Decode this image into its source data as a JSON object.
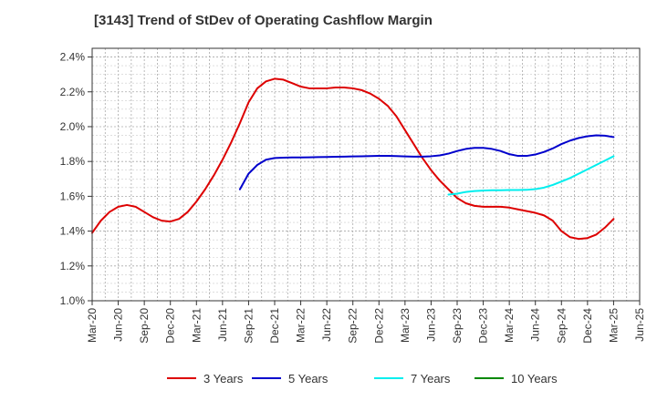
{
  "chart_data": {
    "type": "line",
    "title": "[3143]  Trend of StDev of Operating Cashflow Margin",
    "xlabel": "",
    "ylabel": "",
    "x_ticks": [
      "Mar-20",
      "Jun-20",
      "Sep-20",
      "Dec-20",
      "Mar-21",
      "Jun-21",
      "Sep-21",
      "Dec-21",
      "Mar-22",
      "Jun-22",
      "Sep-22",
      "Dec-22",
      "Mar-23",
      "Jun-23",
      "Sep-23",
      "Dec-23",
      "Mar-24",
      "Jun-24",
      "Sep-24",
      "Dec-24",
      "Mar-25",
      "Jun-25"
    ],
    "y_ticks": [
      "1.0%",
      "1.2%",
      "1.4%",
      "1.6%",
      "1.8%",
      "2.0%",
      "2.2%",
      "2.4%"
    ],
    "ylim": [
      1.0,
      2.45
    ],
    "y_unit": "%",
    "grid": true,
    "legend_position": "bottom",
    "series": [
      {
        "name": "3 Years",
        "color": "#dd0000",
        "points": [
          [
            "Mar-20",
            1.39
          ],
          [
            "Apr-20",
            1.46
          ],
          [
            "May-20",
            1.51
          ],
          [
            "Jun-20",
            1.54
          ],
          [
            "Jul-20",
            1.55
          ],
          [
            "Aug-20",
            1.54
          ],
          [
            "Sep-20",
            1.51
          ],
          [
            "Oct-20",
            1.48
          ],
          [
            "Nov-20",
            1.46
          ],
          [
            "Dec-20",
            1.455
          ],
          [
            "Jan-21",
            1.47
          ],
          [
            "Feb-21",
            1.51
          ],
          [
            "Mar-21",
            1.57
          ],
          [
            "Apr-21",
            1.64
          ],
          [
            "May-21",
            1.72
          ],
          [
            "Jun-21",
            1.81
          ],
          [
            "Jul-21",
            1.91
          ],
          [
            "Aug-21",
            2.02
          ],
          [
            "Sep-21",
            2.14
          ],
          [
            "Oct-21",
            2.22
          ],
          [
            "Nov-21",
            2.26
          ],
          [
            "Dec-21",
            2.275
          ],
          [
            "Jan-22",
            2.27
          ],
          [
            "Feb-22",
            2.25
          ],
          [
            "Mar-22",
            2.23
          ],
          [
            "Apr-22",
            2.22
          ],
          [
            "May-22",
            2.22
          ],
          [
            "Jun-22",
            2.22
          ],
          [
            "Jul-22",
            2.225
          ],
          [
            "Aug-22",
            2.225
          ],
          [
            "Sep-22",
            2.22
          ],
          [
            "Oct-22",
            2.21
          ],
          [
            "Nov-22",
            2.19
          ],
          [
            "Dec-22",
            2.16
          ],
          [
            "Jan-23",
            2.12
          ],
          [
            "Feb-23",
            2.06
          ],
          [
            "Mar-23",
            1.98
          ],
          [
            "Apr-23",
            1.9
          ],
          [
            "May-23",
            1.82
          ],
          [
            "Jun-23",
            1.75
          ],
          [
            "Jul-23",
            1.69
          ],
          [
            "Aug-23",
            1.64
          ],
          [
            "Sep-23",
            1.59
          ],
          [
            "Oct-23",
            1.56
          ],
          [
            "Nov-23",
            1.545
          ],
          [
            "Dec-23",
            1.54
          ],
          [
            "Jan-24",
            1.54
          ],
          [
            "Feb-24",
            1.54
          ],
          [
            "Mar-24",
            1.535
          ],
          [
            "Apr-24",
            1.525
          ],
          [
            "May-24",
            1.515
          ],
          [
            "Jun-24",
            1.505
          ],
          [
            "Jul-24",
            1.49
          ],
          [
            "Aug-24",
            1.46
          ],
          [
            "Sep-24",
            1.4
          ],
          [
            "Oct-24",
            1.365
          ],
          [
            "Nov-24",
            1.355
          ],
          [
            "Dec-24",
            1.36
          ],
          [
            "Jan-25",
            1.38
          ],
          [
            "Feb-25",
            1.42
          ],
          [
            "Mar-25",
            1.47
          ]
        ]
      },
      {
        "name": "5 Years",
        "color": "#0000cc",
        "points": [
          [
            "Aug-21",
            1.64
          ],
          [
            "Sep-21",
            1.73
          ],
          [
            "Oct-21",
            1.78
          ],
          [
            "Nov-21",
            1.81
          ],
          [
            "Dec-21",
            1.82
          ],
          [
            "Jan-22",
            1.822
          ],
          [
            "Feb-22",
            1.823
          ],
          [
            "Mar-22",
            1.823
          ],
          [
            "Apr-22",
            1.824
          ],
          [
            "May-22",
            1.825
          ],
          [
            "Jun-22",
            1.826
          ],
          [
            "Jul-22",
            1.827
          ],
          [
            "Aug-22",
            1.828
          ],
          [
            "Sep-22",
            1.829
          ],
          [
            "Oct-22",
            1.83
          ],
          [
            "Nov-22",
            1.831
          ],
          [
            "Dec-22",
            1.832
          ],
          [
            "Jan-23",
            1.832
          ],
          [
            "Feb-23",
            1.831
          ],
          [
            "Mar-23",
            1.829
          ],
          [
            "Apr-23",
            1.828
          ],
          [
            "May-23",
            1.828
          ],
          [
            "Jun-23",
            1.83
          ],
          [
            "Jul-23",
            1.835
          ],
          [
            "Aug-23",
            1.845
          ],
          [
            "Sep-23",
            1.86
          ],
          [
            "Oct-23",
            1.872
          ],
          [
            "Nov-23",
            1.878
          ],
          [
            "Dec-23",
            1.878
          ],
          [
            "Jan-24",
            1.872
          ],
          [
            "Feb-24",
            1.86
          ],
          [
            "Mar-24",
            1.842
          ],
          [
            "Apr-24",
            1.832
          ],
          [
            "May-24",
            1.832
          ],
          [
            "Jun-24",
            1.84
          ],
          [
            "Jul-24",
            1.855
          ],
          [
            "Aug-24",
            1.875
          ],
          [
            "Sep-24",
            1.9
          ],
          [
            "Oct-24",
            1.92
          ],
          [
            "Nov-24",
            1.935
          ],
          [
            "Dec-24",
            1.945
          ],
          [
            "Jan-25",
            1.95
          ],
          [
            "Feb-25",
            1.948
          ],
          [
            "Mar-25",
            1.94
          ]
        ]
      },
      {
        "name": "7 Years",
        "color": "#00eeee",
        "points": [
          [
            "Aug-23",
            1.61
          ],
          [
            "Sep-23",
            1.615
          ],
          [
            "Oct-23",
            1.625
          ],
          [
            "Nov-23",
            1.63
          ],
          [
            "Dec-23",
            1.633
          ],
          [
            "Jan-24",
            1.635
          ],
          [
            "Feb-24",
            1.635
          ],
          [
            "Mar-24",
            1.636
          ],
          [
            "Apr-24",
            1.636
          ],
          [
            "May-24",
            1.637
          ],
          [
            "Jun-24",
            1.641
          ],
          [
            "Jul-24",
            1.65
          ],
          [
            "Aug-24",
            1.665
          ],
          [
            "Sep-24",
            1.685
          ],
          [
            "Oct-24",
            1.705
          ],
          [
            "Nov-24",
            1.73
          ],
          [
            "Dec-24",
            1.755
          ],
          [
            "Jan-25",
            1.78
          ],
          [
            "Feb-25",
            1.805
          ],
          [
            "Mar-25",
            1.83
          ]
        ]
      },
      {
        "name": "10 Years",
        "color": "#008800",
        "points": []
      }
    ]
  }
}
